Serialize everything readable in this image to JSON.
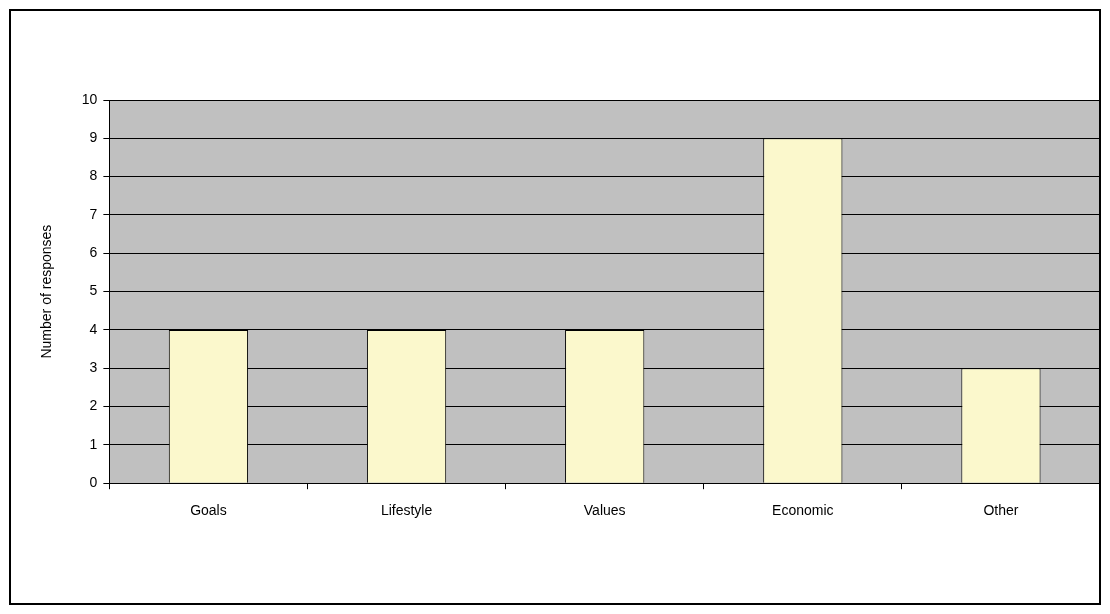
{
  "chart_data": {
    "type": "bar",
    "ylabel": "Number of responses",
    "categories": [
      "Goals",
      "Lifestyle",
      "Values",
      "Economic",
      "Other"
    ],
    "values": [
      4,
      4,
      4,
      9,
      3
    ],
    "color": "#fbf8cc",
    "ylim": [
      0,
      10
    ],
    "yticks": [
      0,
      1,
      2,
      3,
      4,
      5,
      6,
      7,
      8,
      9,
      10
    ],
    "grid": "y"
  }
}
